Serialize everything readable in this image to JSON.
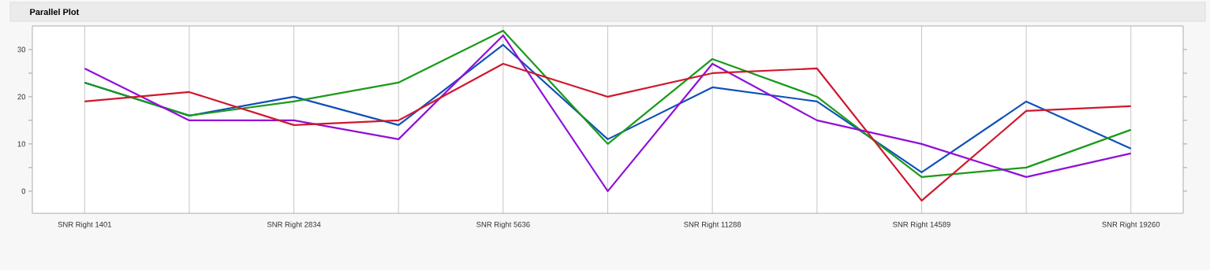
{
  "chart_data": {
    "type": "line",
    "title": "Parallel Plot",
    "categories": [
      "SNR Right 1401",
      null,
      "SNR Right 2834",
      null,
      "SNR Right 5636",
      null,
      "SNR Right 11288",
      null,
      "SNR Right 14589",
      null,
      "SNR Right 19260"
    ],
    "series": [
      {
        "color": "#1150b8",
        "values": [
          23,
          16,
          20,
          14,
          31,
          11,
          22,
          19,
          4,
          19,
          9
        ]
      },
      {
        "color": "#1a9a1a",
        "values": [
          23,
          16,
          19,
          23,
          34,
          10,
          28,
          20,
          3,
          5,
          13
        ]
      },
      {
        "color": "#9010d8",
        "values": [
          26,
          15,
          15,
          11,
          33,
          0,
          27,
          15,
          10,
          3,
          8
        ]
      },
      {
        "color": "#d0182e",
        "values": [
          19,
          21,
          14,
          15,
          27,
          20,
          25,
          26,
          -2,
          17,
          18
        ]
      }
    ],
    "ylim": [
      -4.7,
      35
    ],
    "yticks": [
      0,
      {
        "value": 5,
        "label": null
      },
      10,
      {
        "value": 15,
        "label": null
      },
      20,
      {
        "value": 25,
        "label": null
      },
      30
    ],
    "grid": "x"
  }
}
